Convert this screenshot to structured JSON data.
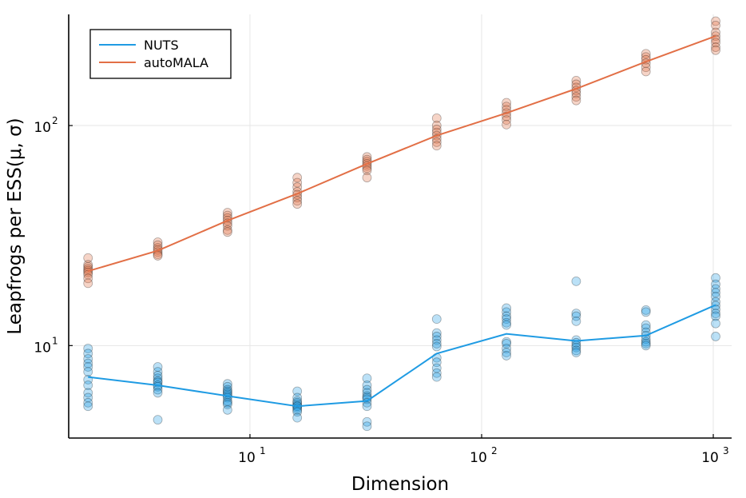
{
  "chart_data": {
    "type": "line+scatter",
    "title": "",
    "xlabel": "Dimension",
    "ylabel": "Leapfrogs per ESS(μ, σ)",
    "xscale": "log",
    "yscale": "log",
    "xlim": [
      1.65,
      1200
    ],
    "ylim": [
      3.8,
      320
    ],
    "x_ticks": [
      {
        "base": "10",
        "exp": "1",
        "value": 10
      },
      {
        "base": "10",
        "exp": "2",
        "value": 100
      },
      {
        "base": "10",
        "exp": "3",
        "value": 1000
      }
    ],
    "y_ticks": [
      {
        "base": "10",
        "exp": "1",
        "value": 10
      },
      {
        "base": "10",
        "exp": "2",
        "value": 100
      }
    ],
    "grid": true,
    "legend_position": "top-left",
    "x": [
      2,
      4,
      8,
      16,
      32,
      64,
      128,
      256,
      512,
      1024
    ],
    "series": [
      {
        "name": "NUTS",
        "color": "#1f9be3",
        "mean": [
          7.2,
          6.6,
          5.9,
          5.3,
          5.6,
          9.2,
          11.3,
          10.5,
          11.1,
          15.3
        ],
        "samples": [
          [
            9.7,
            9.2,
            8.7,
            8.3,
            8.0,
            7.6,
            7.0,
            6.6,
            6.1,
            5.8,
            5.5,
            5.3
          ],
          [
            8.0,
            7.6,
            7.3,
            7.1,
            6.9,
            6.8,
            6.6,
            6.5,
            6.3,
            6.1,
            4.6
          ],
          [
            6.7,
            6.5,
            6.3,
            6.2,
            6.1,
            6.0,
            5.9,
            5.8,
            5.6,
            5.5,
            5.4,
            5.1
          ],
          [
            6.2,
            5.8,
            5.6,
            5.5,
            5.4,
            5.3,
            5.3,
            5.2,
            5.1,
            5.0,
            4.7
          ],
          [
            7.1,
            6.6,
            6.3,
            6.1,
            5.9,
            5.8,
            5.7,
            5.5,
            5.3,
            4.5,
            4.3
          ],
          [
            13.2,
            11.4,
            11.0,
            10.6,
            10.2,
            9.9,
            8.8,
            8.4,
            7.9,
            7.5,
            7.2
          ],
          [
            14.8,
            14.2,
            13.6,
            13.2,
            12.7,
            12.4,
            10.4,
            10.2,
            9.7,
            9.3,
            9.0
          ],
          [
            19.6,
            14.0,
            13.6,
            12.9,
            10.6,
            10.3,
            10.0,
            9.8,
            9.5,
            9.3
          ],
          [
            14.5,
            14.2,
            12.4,
            12.0,
            11.5,
            11.1,
            10.7,
            10.4,
            10.2,
            10.0
          ],
          [
            20.3,
            19.0,
            18.1,
            17.4,
            16.7,
            15.8,
            15.2,
            14.6,
            14.0,
            13.6,
            12.6,
            11.0
          ]
        ]
      },
      {
        "name": "autoMALA",
        "color": "#e26f46",
        "mean": [
          21.8,
          27.0,
          37.0,
          49.0,
          67.0,
          90.0,
          114.0,
          147.0,
          195.0,
          255.0
        ],
        "samples": [
          [
            25.0,
            23.3,
            22.8,
            22.3,
            21.9,
            21.5,
            21.0,
            20.2,
            19.2
          ],
          [
            29.5,
            28.6,
            27.8,
            27.2,
            26.6,
            26.0,
            25.6
          ],
          [
            40.2,
            39.0,
            38.0,
            37.0,
            36.0,
            35.0,
            33.5,
            32.8
          ],
          [
            58.0,
            55.0,
            52.5,
            50.0,
            48.5,
            47.0,
            45.5,
            44.0
          ],
          [
            72.0,
            70.0,
            68.5,
            67.0,
            65.5,
            64.0,
            62.5,
            58.0
          ],
          [
            108.0,
            100.0,
            96.0,
            93.0,
            90.0,
            87.0,
            84.0,
            81.0
          ],
          [
            127.0,
            122.0,
            118.0,
            114.0,
            110.0,
            106.0,
            101.0
          ],
          [
            160.0,
            154.0,
            149.0,
            144.0,
            140.0,
            135.0,
            130.0
          ],
          [
            212.0,
            205.0,
            199.0,
            192.0,
            184.0,
            176.0
          ],
          [
            298.0,
            285.0,
            265.0,
            255.0,
            246.0,
            238.0,
            227.0,
            220.0
          ]
        ]
      }
    ]
  }
}
